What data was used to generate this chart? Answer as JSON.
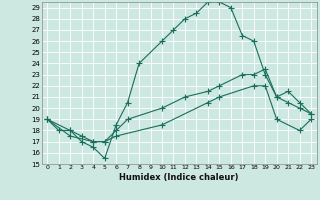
{
  "xlabel": "Humidex (Indice chaleur)",
  "background_color": "#cce8e0",
  "grid_color": "#ffffff",
  "line_color": "#1a6e5e",
  "xlim": [
    -0.5,
    23.5
  ],
  "ylim": [
    15,
    29.5
  ],
  "yticks": [
    15,
    16,
    17,
    18,
    19,
    20,
    21,
    22,
    23,
    24,
    25,
    26,
    27,
    28,
    29
  ],
  "xticks": [
    0,
    1,
    2,
    3,
    4,
    5,
    6,
    7,
    8,
    9,
    10,
    11,
    12,
    13,
    14,
    15,
    16,
    17,
    18,
    19,
    20,
    21,
    22,
    23
  ],
  "line1_x": [
    0,
    1,
    2,
    3,
    4,
    5,
    6,
    7,
    8,
    10,
    11,
    12,
    13,
    14,
    15,
    16,
    17,
    18,
    19,
    20,
    21,
    22,
    23
  ],
  "line1_y": [
    19,
    18,
    18,
    17,
    16.5,
    15.5,
    18.5,
    20.5,
    24,
    26,
    27,
    28,
    28.5,
    29.5,
    29.5,
    29,
    26.5,
    26,
    23,
    21,
    20.5,
    20,
    19.5
  ],
  "line2_x": [
    0,
    2,
    3,
    4,
    5,
    6,
    7,
    10,
    12,
    14,
    15,
    17,
    18,
    19,
    20,
    21,
    22,
    23
  ],
  "line2_y": [
    19,
    18,
    17.5,
    17,
    17,
    18,
    19,
    20,
    21,
    21.5,
    22,
    23,
    23,
    23.5,
    21,
    21.5,
    20.5,
    19.5
  ],
  "line3_x": [
    0,
    2,
    4,
    5,
    6,
    10,
    14,
    15,
    18,
    19,
    20,
    22,
    23
  ],
  "line3_y": [
    19,
    17.5,
    17,
    17,
    17.5,
    18.5,
    20.5,
    21,
    22,
    22,
    19,
    18,
    19
  ]
}
